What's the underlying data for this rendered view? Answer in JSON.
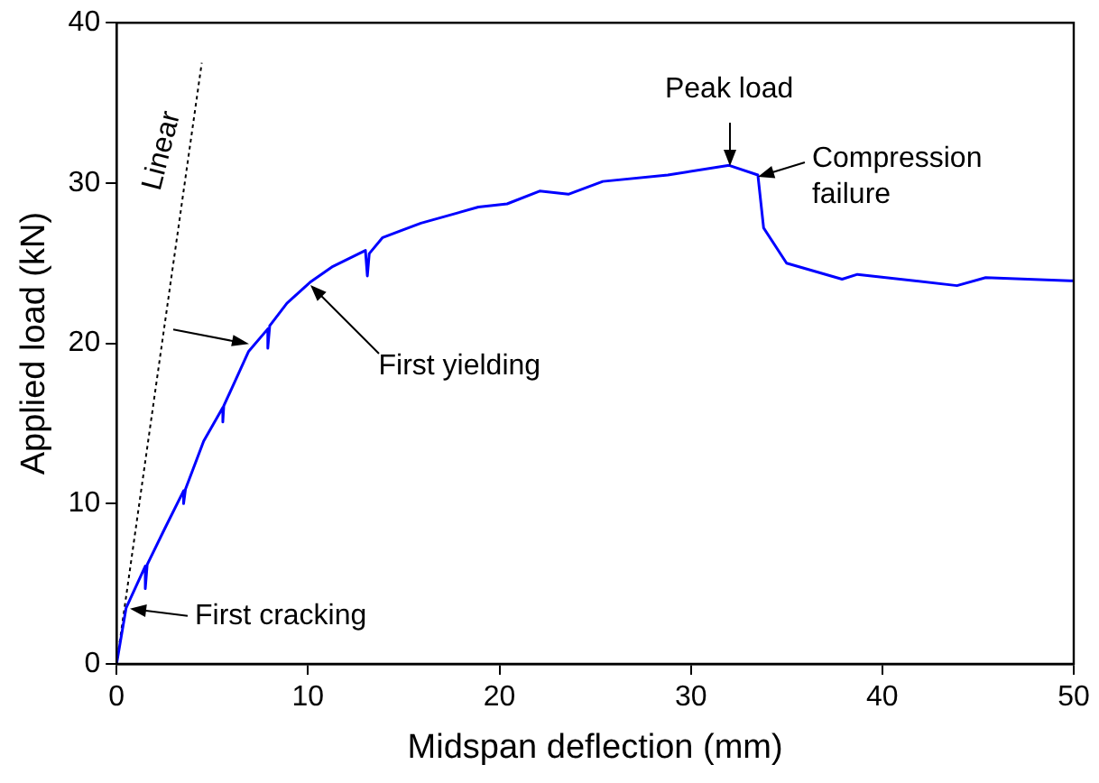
{
  "chart_data": {
    "type": "line",
    "xlabel": "Midspan deflection (mm)",
    "ylabel": "Applied load (kN)",
    "xlim": [
      0,
      50
    ],
    "xticks": [
      0,
      10,
      20,
      30,
      40,
      50
    ],
    "ylim": [
      0,
      40
    ],
    "yticks": [
      0,
      10,
      20,
      30,
      40
    ],
    "grid": false,
    "legend": false,
    "marker": "none",
    "series": [
      {
        "color": "#0000ff",
        "line_style": "solid",
        "x": [
          0,
          0.5,
          1.5,
          1.5,
          1.6,
          2.5,
          3.5,
          3.5,
          3.6,
          4.55,
          5.55,
          5.55,
          5.6,
          6.9,
          7.9,
          7.9,
          8.0,
          8.9,
          10.1,
          11.3,
          13.0,
          13.1,
          13.2,
          13.9,
          15.9,
          18.9,
          20.4,
          22.1,
          23.6,
          25.4,
          28.8,
          32.0,
          33.5,
          33.8,
          35.0,
          37.9,
          38.7,
          43.9,
          45.4,
          49.8,
          50
        ],
        "values": [
          0,
          3.5,
          6.1,
          4.7,
          6.2,
          8.4,
          10.8,
          10.0,
          10.9,
          13.9,
          16.0,
          15.1,
          16.1,
          19.5,
          20.9,
          19.7,
          21.1,
          22.5,
          23.8,
          24.8,
          25.8,
          24.2,
          25.6,
          26.6,
          27.5,
          28.5,
          28.7,
          29.5,
          29.3,
          30.1,
          30.5,
          31.1,
          30.5,
          27.2,
          25.0,
          24.0,
          24.3,
          23.6,
          24.1,
          23.9,
          23.9
        ]
      },
      {
        "color": "#000000",
        "line_style": "dotted",
        "x": [
          0,
          4.45
        ],
        "values": [
          0,
          37.5
        ]
      }
    ],
    "annotations": [
      {
        "text": "Linear",
        "x": 3.7,
        "y": 32
      },
      {
        "text": "First cracking",
        "x": 0.7,
        "y": 3.4
      },
      {
        "text": "First yielding",
        "x": 10.1,
        "y": 23.6
      },
      {
        "text": "Peak load",
        "x": 32.0,
        "y": 31.1
      },
      {
        "text": "Compression\nfailure",
        "x": 33.5,
        "y": 30.4
      }
    ]
  }
}
